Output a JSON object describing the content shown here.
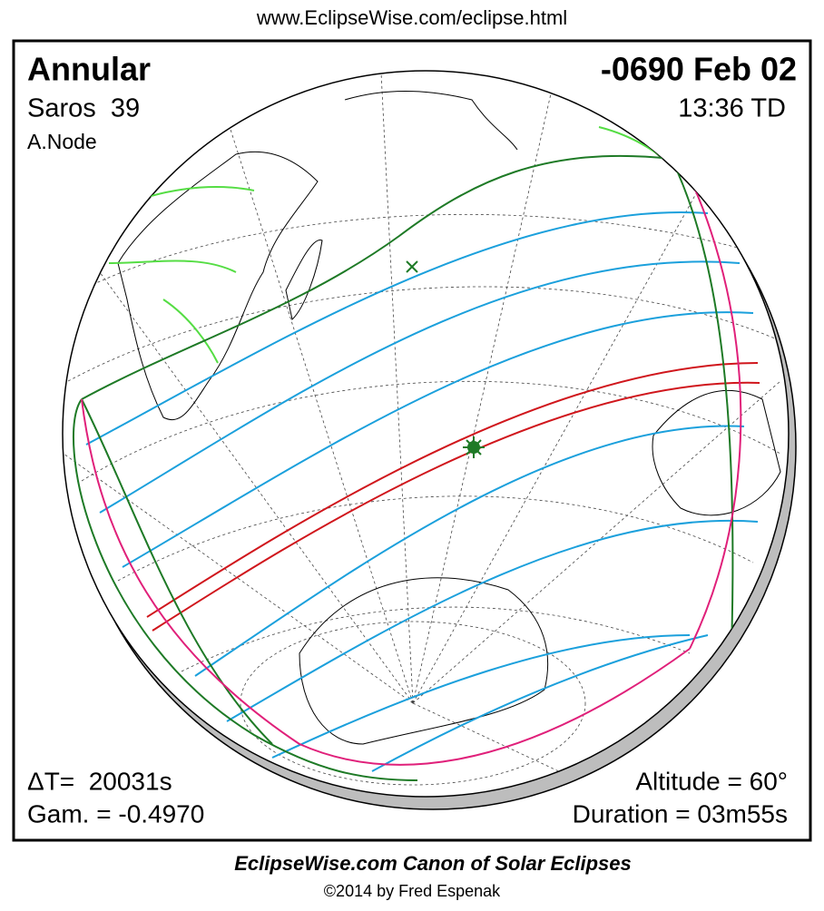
{
  "header": {
    "url": "www.EclipseWise.com/eclipse.html"
  },
  "panel": {
    "eclipse_type": "Annular",
    "saros": "Saros  39",
    "node": "A.Node",
    "date": "-0690 Feb 02",
    "time": "13:36 TD",
    "delta_t": "ΔT=  20031s",
    "gamma": "Gam. = -0.4970",
    "altitude": "Altitude = 60°",
    "duration": "Duration = 03m55s"
  },
  "footer": {
    "title": "EclipseWise.com Canon of Solar Eclipses",
    "copyright": "©2014 by Fred Espenak"
  }
}
